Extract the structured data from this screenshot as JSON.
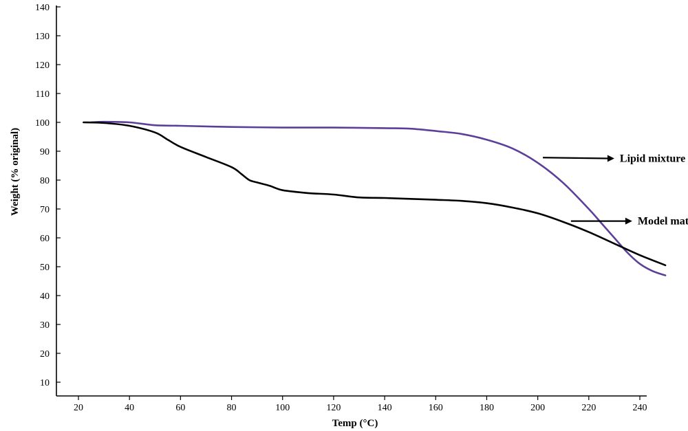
{
  "chart_data": {
    "type": "line",
    "title": "",
    "xlabel": "Temp (°C)",
    "ylabel": "Weight (% original)",
    "xlim": [
      10,
      240
    ],
    "ylim": [
      5,
      140
    ],
    "x_ticks": [
      20,
      40,
      60,
      80,
      100,
      120,
      140,
      160,
      180,
      200,
      220,
      240
    ],
    "y_ticks": [
      10,
      20,
      30,
      40,
      50,
      60,
      70,
      80,
      90,
      100,
      110,
      120,
      130,
      140
    ],
    "grid": false,
    "legend": "none",
    "series": [
      {
        "name": "Lipid mixture",
        "color": "#5b3f99",
        "x": [
          25,
          30,
          40,
          50,
          60,
          80,
          100,
          120,
          140,
          150,
          160,
          170,
          180,
          190,
          200,
          210,
          220,
          225,
          230,
          235,
          240,
          245,
          250
        ],
        "y": [
          100,
          100.2,
          100,
          99,
          98.8,
          98.4,
          98.2,
          98.2,
          98,
          97.8,
          97,
          96,
          94,
          91,
          86,
          79,
          70,
          65,
          60,
          55,
          51,
          48.5,
          47
        ]
      },
      {
        "name": "Model matrix",
        "color": "#000000",
        "x": [
          22,
          30,
          40,
          50,
          55,
          60,
          70,
          80,
          84,
          87,
          90,
          95,
          100,
          110,
          120,
          130,
          140,
          150,
          160,
          170,
          180,
          190,
          200,
          210,
          220,
          230,
          240,
          250
        ],
        "y": [
          100,
          99.8,
          98.8,
          96.5,
          94,
          91.5,
          88,
          84.5,
          82,
          80,
          79.2,
          78,
          76.5,
          75.5,
          75,
          74,
          73.8,
          73.5,
          73.2,
          72.8,
          72,
          70.5,
          68.5,
          65.5,
          62,
          58,
          54,
          50.5
        ]
      }
    ],
    "annotations": [
      {
        "text": "Lipid mixture",
        "arrow_from": [
          202,
          87.8
        ],
        "arrow_to": [
          230,
          87.5
        ]
      },
      {
        "text": "Model matrix",
        "arrow_from": [
          213,
          65.8
        ],
        "arrow_to": [
          237,
          65.8
        ]
      }
    ]
  }
}
